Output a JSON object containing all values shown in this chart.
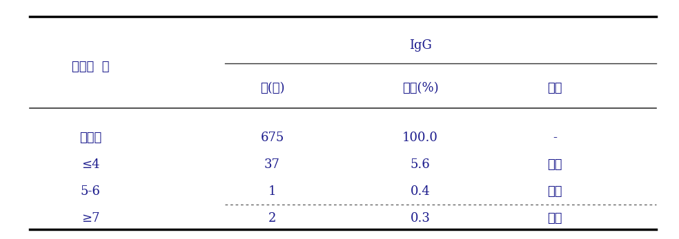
{
  "title_main": "IgG",
  "col_header_left": "항체값  합",
  "col_headers": [
    "수(명)",
    "누적(%)",
    "결과"
  ],
  "rows": [
    [
      "미시행",
      "675",
      "100.0",
      "-"
    ],
    [
      "≤4",
      "37",
      "5.6",
      "음성"
    ],
    [
      "5-6",
      "1",
      "0.4",
      "경계"
    ],
    [
      "≥7",
      "2",
      "0.3",
      "양성"
    ]
  ],
  "bg_color": "#ffffff",
  "text_color": "#1a1a8c",
  "font_size": 13,
  "header_font_size": 13,
  "top_bar_color": "#000000",
  "bottom_bar_color": "#000000",
  "dashed_row_after": 2,
  "figsize": [
    9.84,
    3.47
  ],
  "dpi": 100
}
